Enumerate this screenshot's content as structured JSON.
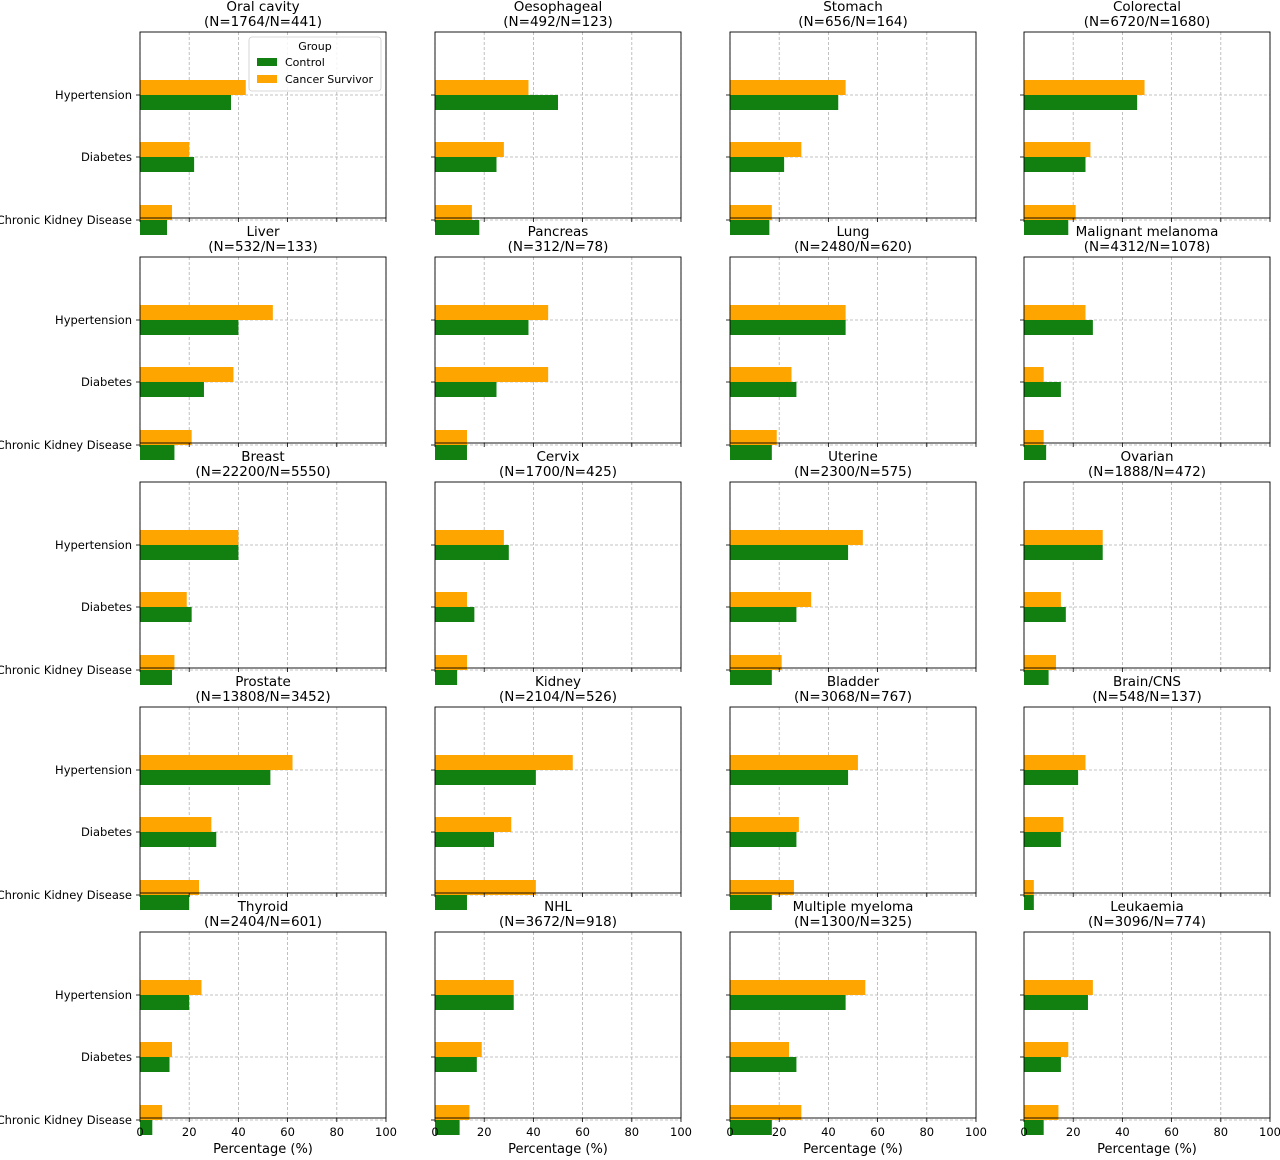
{
  "colors": {
    "control": "#118011",
    "survivor": "#ffa500",
    "grid": "#b0b0b0",
    "axis": "#000000"
  },
  "legend": {
    "title": "Group",
    "entries": [
      "Control",
      "Cancer Survivor"
    ],
    "placement": "upper-right of first panel"
  },
  "chart_data": [
    {
      "type": "bar",
      "orientation": "horizontal",
      "title": "Oral cavity",
      "subtitle": "(N=1764/N=441)",
      "categories": [
        "Hypertension",
        "Diabetes",
        "Chronic Kidney Disease"
      ],
      "series": [
        {
          "name": "Control",
          "values": [
            37,
            22,
            11
          ]
        },
        {
          "name": "Cancer Survivor",
          "values": [
            43,
            20,
            13
          ]
        }
      ],
      "xlim": [
        0,
        100
      ],
      "xticks": [
        0,
        20,
        40,
        60,
        80,
        100
      ],
      "xlabel": "",
      "grid": true
    },
    {
      "type": "bar",
      "orientation": "horizontal",
      "title": "Oesophageal",
      "subtitle": "(N=492/N=123)",
      "categories": [
        "Hypertension",
        "Diabetes",
        "Chronic Kidney Disease"
      ],
      "series": [
        {
          "name": "Control",
          "values": [
            50,
            25,
            18
          ]
        },
        {
          "name": "Cancer Survivor",
          "values": [
            38,
            28,
            15
          ]
        }
      ],
      "xlim": [
        0,
        100
      ],
      "xticks": [
        0,
        20,
        40,
        60,
        80,
        100
      ],
      "xlabel": "",
      "grid": true
    },
    {
      "type": "bar",
      "orientation": "horizontal",
      "title": "Stomach",
      "subtitle": "(N=656/N=164)",
      "categories": [
        "Hypertension",
        "Diabetes",
        "Chronic Kidney Disease"
      ],
      "series": [
        {
          "name": "Control",
          "values": [
            44,
            22,
            16
          ]
        },
        {
          "name": "Cancer Survivor",
          "values": [
            47,
            29,
            17
          ]
        }
      ],
      "xlim": [
        0,
        100
      ],
      "xticks": [
        0,
        20,
        40,
        60,
        80,
        100
      ],
      "xlabel": "",
      "grid": true
    },
    {
      "type": "bar",
      "orientation": "horizontal",
      "title": "Colorectal",
      "subtitle": "(N=6720/N=1680)",
      "categories": [
        "Hypertension",
        "Diabetes",
        "Chronic Kidney Disease"
      ],
      "series": [
        {
          "name": "Control",
          "values": [
            46,
            25,
            18
          ]
        },
        {
          "name": "Cancer Survivor",
          "values": [
            49,
            27,
            21
          ]
        }
      ],
      "xlim": [
        0,
        100
      ],
      "xticks": [
        0,
        20,
        40,
        60,
        80,
        100
      ],
      "xlabel": "",
      "grid": true
    },
    {
      "type": "bar",
      "orientation": "horizontal",
      "title": "Liver",
      "subtitle": "(N=532/N=133)",
      "categories": [
        "Hypertension",
        "Diabetes",
        "Chronic Kidney Disease"
      ],
      "series": [
        {
          "name": "Control",
          "values": [
            40,
            26,
            14
          ]
        },
        {
          "name": "Cancer Survivor",
          "values": [
            54,
            38,
            21
          ]
        }
      ],
      "xlim": [
        0,
        100
      ],
      "xticks": [
        0,
        20,
        40,
        60,
        80,
        100
      ],
      "xlabel": "",
      "grid": true
    },
    {
      "type": "bar",
      "orientation": "horizontal",
      "title": "Pancreas",
      "subtitle": "(N=312/N=78)",
      "categories": [
        "Hypertension",
        "Diabetes",
        "Chronic Kidney Disease"
      ],
      "series": [
        {
          "name": "Control",
          "values": [
            38,
            25,
            13
          ]
        },
        {
          "name": "Cancer Survivor",
          "values": [
            46,
            46,
            13
          ]
        }
      ],
      "xlim": [
        0,
        100
      ],
      "xticks": [
        0,
        20,
        40,
        60,
        80,
        100
      ],
      "xlabel": "",
      "grid": true
    },
    {
      "type": "bar",
      "orientation": "horizontal",
      "title": "Lung",
      "subtitle": "(N=2480/N=620)",
      "categories": [
        "Hypertension",
        "Diabetes",
        "Chronic Kidney Disease"
      ],
      "series": [
        {
          "name": "Control",
          "values": [
            47,
            27,
            17
          ]
        },
        {
          "name": "Cancer Survivor",
          "values": [
            47,
            25,
            19
          ]
        }
      ],
      "xlim": [
        0,
        100
      ],
      "xticks": [
        0,
        20,
        40,
        60,
        80,
        100
      ],
      "xlabel": "",
      "grid": true
    },
    {
      "type": "bar",
      "orientation": "horizontal",
      "title": "Malignant melanoma",
      "subtitle": "(N=4312/N=1078)",
      "categories": [
        "Hypertension",
        "Diabetes",
        "Chronic Kidney Disease"
      ],
      "series": [
        {
          "name": "Control",
          "values": [
            28,
            15,
            9
          ]
        },
        {
          "name": "Cancer Survivor",
          "values": [
            25,
            8,
            8
          ]
        }
      ],
      "xlim": [
        0,
        100
      ],
      "xticks": [
        0,
        20,
        40,
        60,
        80,
        100
      ],
      "xlabel": "",
      "grid": true
    },
    {
      "type": "bar",
      "orientation": "horizontal",
      "title": "Breast",
      "subtitle": "(N=22200/N=5550)",
      "categories": [
        "Hypertension",
        "Diabetes",
        "Chronic Kidney Disease"
      ],
      "series": [
        {
          "name": "Control",
          "values": [
            40,
            21,
            13
          ]
        },
        {
          "name": "Cancer Survivor",
          "values": [
            40,
            19,
            14
          ]
        }
      ],
      "xlim": [
        0,
        100
      ],
      "xticks": [
        0,
        20,
        40,
        60,
        80,
        100
      ],
      "xlabel": "",
      "grid": true
    },
    {
      "type": "bar",
      "orientation": "horizontal",
      "title": "Cervix",
      "subtitle": "(N=1700/N=425)",
      "categories": [
        "Hypertension",
        "Diabetes",
        "Chronic Kidney Disease"
      ],
      "series": [
        {
          "name": "Control",
          "values": [
            30,
            16,
            9
          ]
        },
        {
          "name": "Cancer Survivor",
          "values": [
            28,
            13,
            13
          ]
        }
      ],
      "xlim": [
        0,
        100
      ],
      "xticks": [
        0,
        20,
        40,
        60,
        80,
        100
      ],
      "xlabel": "",
      "grid": true
    },
    {
      "type": "bar",
      "orientation": "horizontal",
      "title": "Uterine",
      "subtitle": "(N=2300/N=575)",
      "categories": [
        "Hypertension",
        "Diabetes",
        "Chronic Kidney Disease"
      ],
      "series": [
        {
          "name": "Control",
          "values": [
            48,
            27,
            17
          ]
        },
        {
          "name": "Cancer Survivor",
          "values": [
            54,
            33,
            21
          ]
        }
      ],
      "xlim": [
        0,
        100
      ],
      "xticks": [
        0,
        20,
        40,
        60,
        80,
        100
      ],
      "xlabel": "",
      "grid": true
    },
    {
      "type": "bar",
      "orientation": "horizontal",
      "title": "Ovarian",
      "subtitle": "(N=1888/N=472)",
      "categories": [
        "Hypertension",
        "Diabetes",
        "Chronic Kidney Disease"
      ],
      "series": [
        {
          "name": "Control",
          "values": [
            32,
            17,
            10
          ]
        },
        {
          "name": "Cancer Survivor",
          "values": [
            32,
            15,
            13
          ]
        }
      ],
      "xlim": [
        0,
        100
      ],
      "xticks": [
        0,
        20,
        40,
        60,
        80,
        100
      ],
      "xlabel": "",
      "grid": true
    },
    {
      "type": "bar",
      "orientation": "horizontal",
      "title": "Prostate",
      "subtitle": "(N=13808/N=3452)",
      "categories": [
        "Hypertension",
        "Diabetes",
        "Chronic Kidney Disease"
      ],
      "series": [
        {
          "name": "Control",
          "values": [
            53,
            31,
            20
          ]
        },
        {
          "name": "Cancer Survivor",
          "values": [
            62,
            29,
            24
          ]
        }
      ],
      "xlim": [
        0,
        100
      ],
      "xticks": [
        0,
        20,
        40,
        60,
        80,
        100
      ],
      "xlabel": "",
      "grid": true
    },
    {
      "type": "bar",
      "orientation": "horizontal",
      "title": "Kidney",
      "subtitle": "(N=2104/N=526)",
      "categories": [
        "Hypertension",
        "Diabetes",
        "Chronic Kidney Disease"
      ],
      "series": [
        {
          "name": "Control",
          "values": [
            41,
            24,
            13
          ]
        },
        {
          "name": "Cancer Survivor",
          "values": [
            56,
            31,
            41
          ]
        }
      ],
      "xlim": [
        0,
        100
      ],
      "xticks": [
        0,
        20,
        40,
        60,
        80,
        100
      ],
      "xlabel": "",
      "grid": true
    },
    {
      "type": "bar",
      "orientation": "horizontal",
      "title": "Bladder",
      "subtitle": "(N=3068/N=767)",
      "categories": [
        "Hypertension",
        "Diabetes",
        "Chronic Kidney Disease"
      ],
      "series": [
        {
          "name": "Control",
          "values": [
            48,
            27,
            17
          ]
        },
        {
          "name": "Cancer Survivor",
          "values": [
            52,
            28,
            26
          ]
        }
      ],
      "xlim": [
        0,
        100
      ],
      "xticks": [
        0,
        20,
        40,
        60,
        80,
        100
      ],
      "xlabel": "",
      "grid": true
    },
    {
      "type": "bar",
      "orientation": "horizontal",
      "title": "Brain/CNS",
      "subtitle": "(N=548/N=137)",
      "categories": [
        "Hypertension",
        "Diabetes",
        "Chronic Kidney Disease"
      ],
      "series": [
        {
          "name": "Control",
          "values": [
            22,
            15,
            4
          ]
        },
        {
          "name": "Cancer Survivor",
          "values": [
            25,
            16,
            4
          ]
        }
      ],
      "xlim": [
        0,
        100
      ],
      "xticks": [
        0,
        20,
        40,
        60,
        80,
        100
      ],
      "xlabel": "",
      "grid": true
    },
    {
      "type": "bar",
      "orientation": "horizontal",
      "title": "Thyroid",
      "subtitle": "(N=2404/N=601)",
      "categories": [
        "Hypertension",
        "Diabetes",
        "Chronic Kidney Disease"
      ],
      "series": [
        {
          "name": "Control",
          "values": [
            20,
            12,
            5
          ]
        },
        {
          "name": "Cancer Survivor",
          "values": [
            25,
            13,
            9
          ]
        }
      ],
      "xlim": [
        0,
        100
      ],
      "xticks": [
        0,
        20,
        40,
        60,
        80,
        100
      ],
      "xlabel": "Percentage (%)",
      "grid": true
    },
    {
      "type": "bar",
      "orientation": "horizontal",
      "title": "NHL",
      "subtitle": "(N=3672/N=918)",
      "categories": [
        "Hypertension",
        "Diabetes",
        "Chronic Kidney Disease"
      ],
      "series": [
        {
          "name": "Control",
          "values": [
            32,
            17,
            10
          ]
        },
        {
          "name": "Cancer Survivor",
          "values": [
            32,
            19,
            14
          ]
        }
      ],
      "xlim": [
        0,
        100
      ],
      "xticks": [
        0,
        20,
        40,
        60,
        80,
        100
      ],
      "xlabel": "Percentage (%)",
      "grid": true
    },
    {
      "type": "bar",
      "orientation": "horizontal",
      "title": "Multiple myeloma",
      "subtitle": "(N=1300/N=325)",
      "categories": [
        "Hypertension",
        "Diabetes",
        "Chronic Kidney Disease"
      ],
      "series": [
        {
          "name": "Control",
          "values": [
            47,
            27,
            17
          ]
        },
        {
          "name": "Cancer Survivor",
          "values": [
            55,
            24,
            29
          ]
        }
      ],
      "xlim": [
        0,
        100
      ],
      "xticks": [
        0,
        20,
        40,
        60,
        80,
        100
      ],
      "xlabel": "Percentage (%)",
      "grid": true
    },
    {
      "type": "bar",
      "orientation": "horizontal",
      "title": "Leukaemia",
      "subtitle": "(N=3096/N=774)",
      "categories": [
        "Hypertension",
        "Diabetes",
        "Chronic Kidney Disease"
      ],
      "series": [
        {
          "name": "Control",
          "values": [
            26,
            15,
            8
          ]
        },
        {
          "name": "Cancer Survivor",
          "values": [
            28,
            18,
            14
          ]
        }
      ],
      "xlim": [
        0,
        100
      ],
      "xticks": [
        0,
        20,
        40,
        60,
        80,
        100
      ],
      "xlabel": "Percentage (%)",
      "grid": true
    }
  ]
}
